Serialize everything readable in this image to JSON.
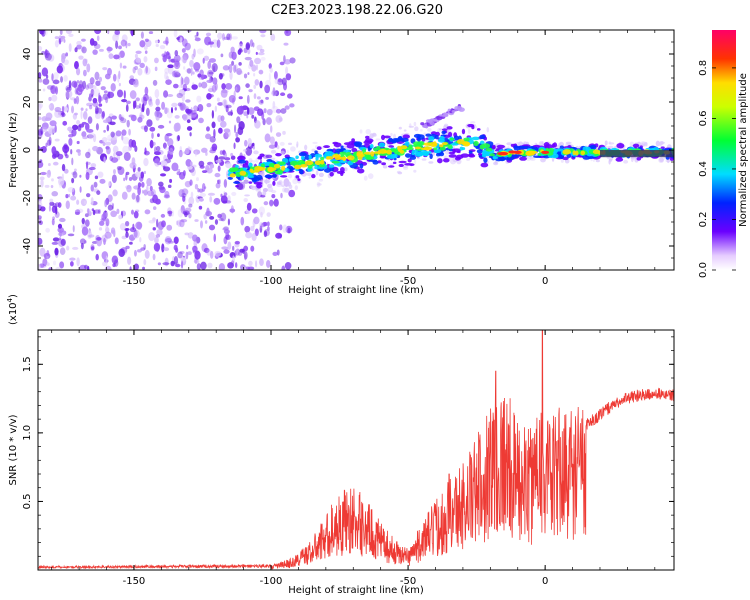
{
  "title": "C2E3.2023.198.22.06.G20",
  "chart_data": [
    {
      "type": "heatmap",
      "xlabel": "Height of straight line (km)",
      "ylabel": "Frequency (Hz)",
      "xlim": [
        -185,
        47
      ],
      "ylim": [
        -50,
        50
      ],
      "xticks": [
        -150,
        -100,
        -50,
        0
      ],
      "yticks": [
        -40,
        -20,
        0,
        20,
        40
      ],
      "colorbar": {
        "label": "Normalized spectral amplitude",
        "range": [
          0.0,
          0.95
        ],
        "ticks": [
          0.0,
          0.2,
          0.4,
          0.6,
          0.8
        ],
        "tick_labels": [
          "0.0",
          "0.2",
          "0.4",
          "0.6",
          "0.8"
        ]
      },
      "features": {
        "noise_region_x": [
          -185,
          -100
        ],
        "ridge": {
          "x": [
            -115,
            -100,
            -80,
            -60,
            -40,
            -25,
            -20,
            -10,
            0,
            20,
            47
          ],
          "y": [
            -10,
            -8,
            -4,
            -1,
            2,
            4,
            -2,
            -1,
            -1,
            -1,
            -1
          ]
        },
        "branch": {
          "x": [
            -45,
            -30
          ],
          "y": [
            10,
            18
          ]
        }
      },
      "grid": false
    },
    {
      "type": "line",
      "xlabel": "Height of straight line (km)",
      "ylabel": "SNR (10 * v/v)",
      "y_multiplier": "(x10^4)",
      "xlim": [
        -185,
        47
      ],
      "ylim": [
        0,
        1.75
      ],
      "xticks": [
        -150,
        -100,
        -50,
        0
      ],
      "yticks": [
        0.5,
        1.0,
        1.5
      ],
      "ytick_labels": [
        "0.5",
        "1.0",
        "1.5"
      ],
      "series": [
        {
          "color": "#ee3a34",
          "envelope_x": [
            -185,
            -100,
            -92,
            -85,
            -78,
            -72,
            -66,
            -60,
            -55,
            -50,
            -45,
            -40,
            -35,
            -30,
            -25,
            -20,
            -15,
            -10,
            -5,
            -2,
            0,
            2,
            5,
            10,
            15,
            20,
            25,
            30,
            35,
            40,
            47
          ],
          "envelope_y": [
            0.02,
            0.03,
            0.08,
            0.2,
            0.42,
            0.55,
            0.48,
            0.3,
            0.2,
            0.14,
            0.3,
            0.45,
            0.6,
            0.7,
            0.85,
            1.1,
            1.2,
            0.95,
            0.9,
            1.3,
            1.0,
            0.95,
            1.05,
            1.05,
            1.1,
            1.18,
            1.25,
            1.3,
            1.32,
            1.33,
            1.32
          ],
          "spikes": [
            [
              -18,
              1.45
            ],
            [
              -1,
              1.75
            ],
            [
              -35,
              0.7
            ]
          ]
        }
      ],
      "grid": false
    }
  ]
}
